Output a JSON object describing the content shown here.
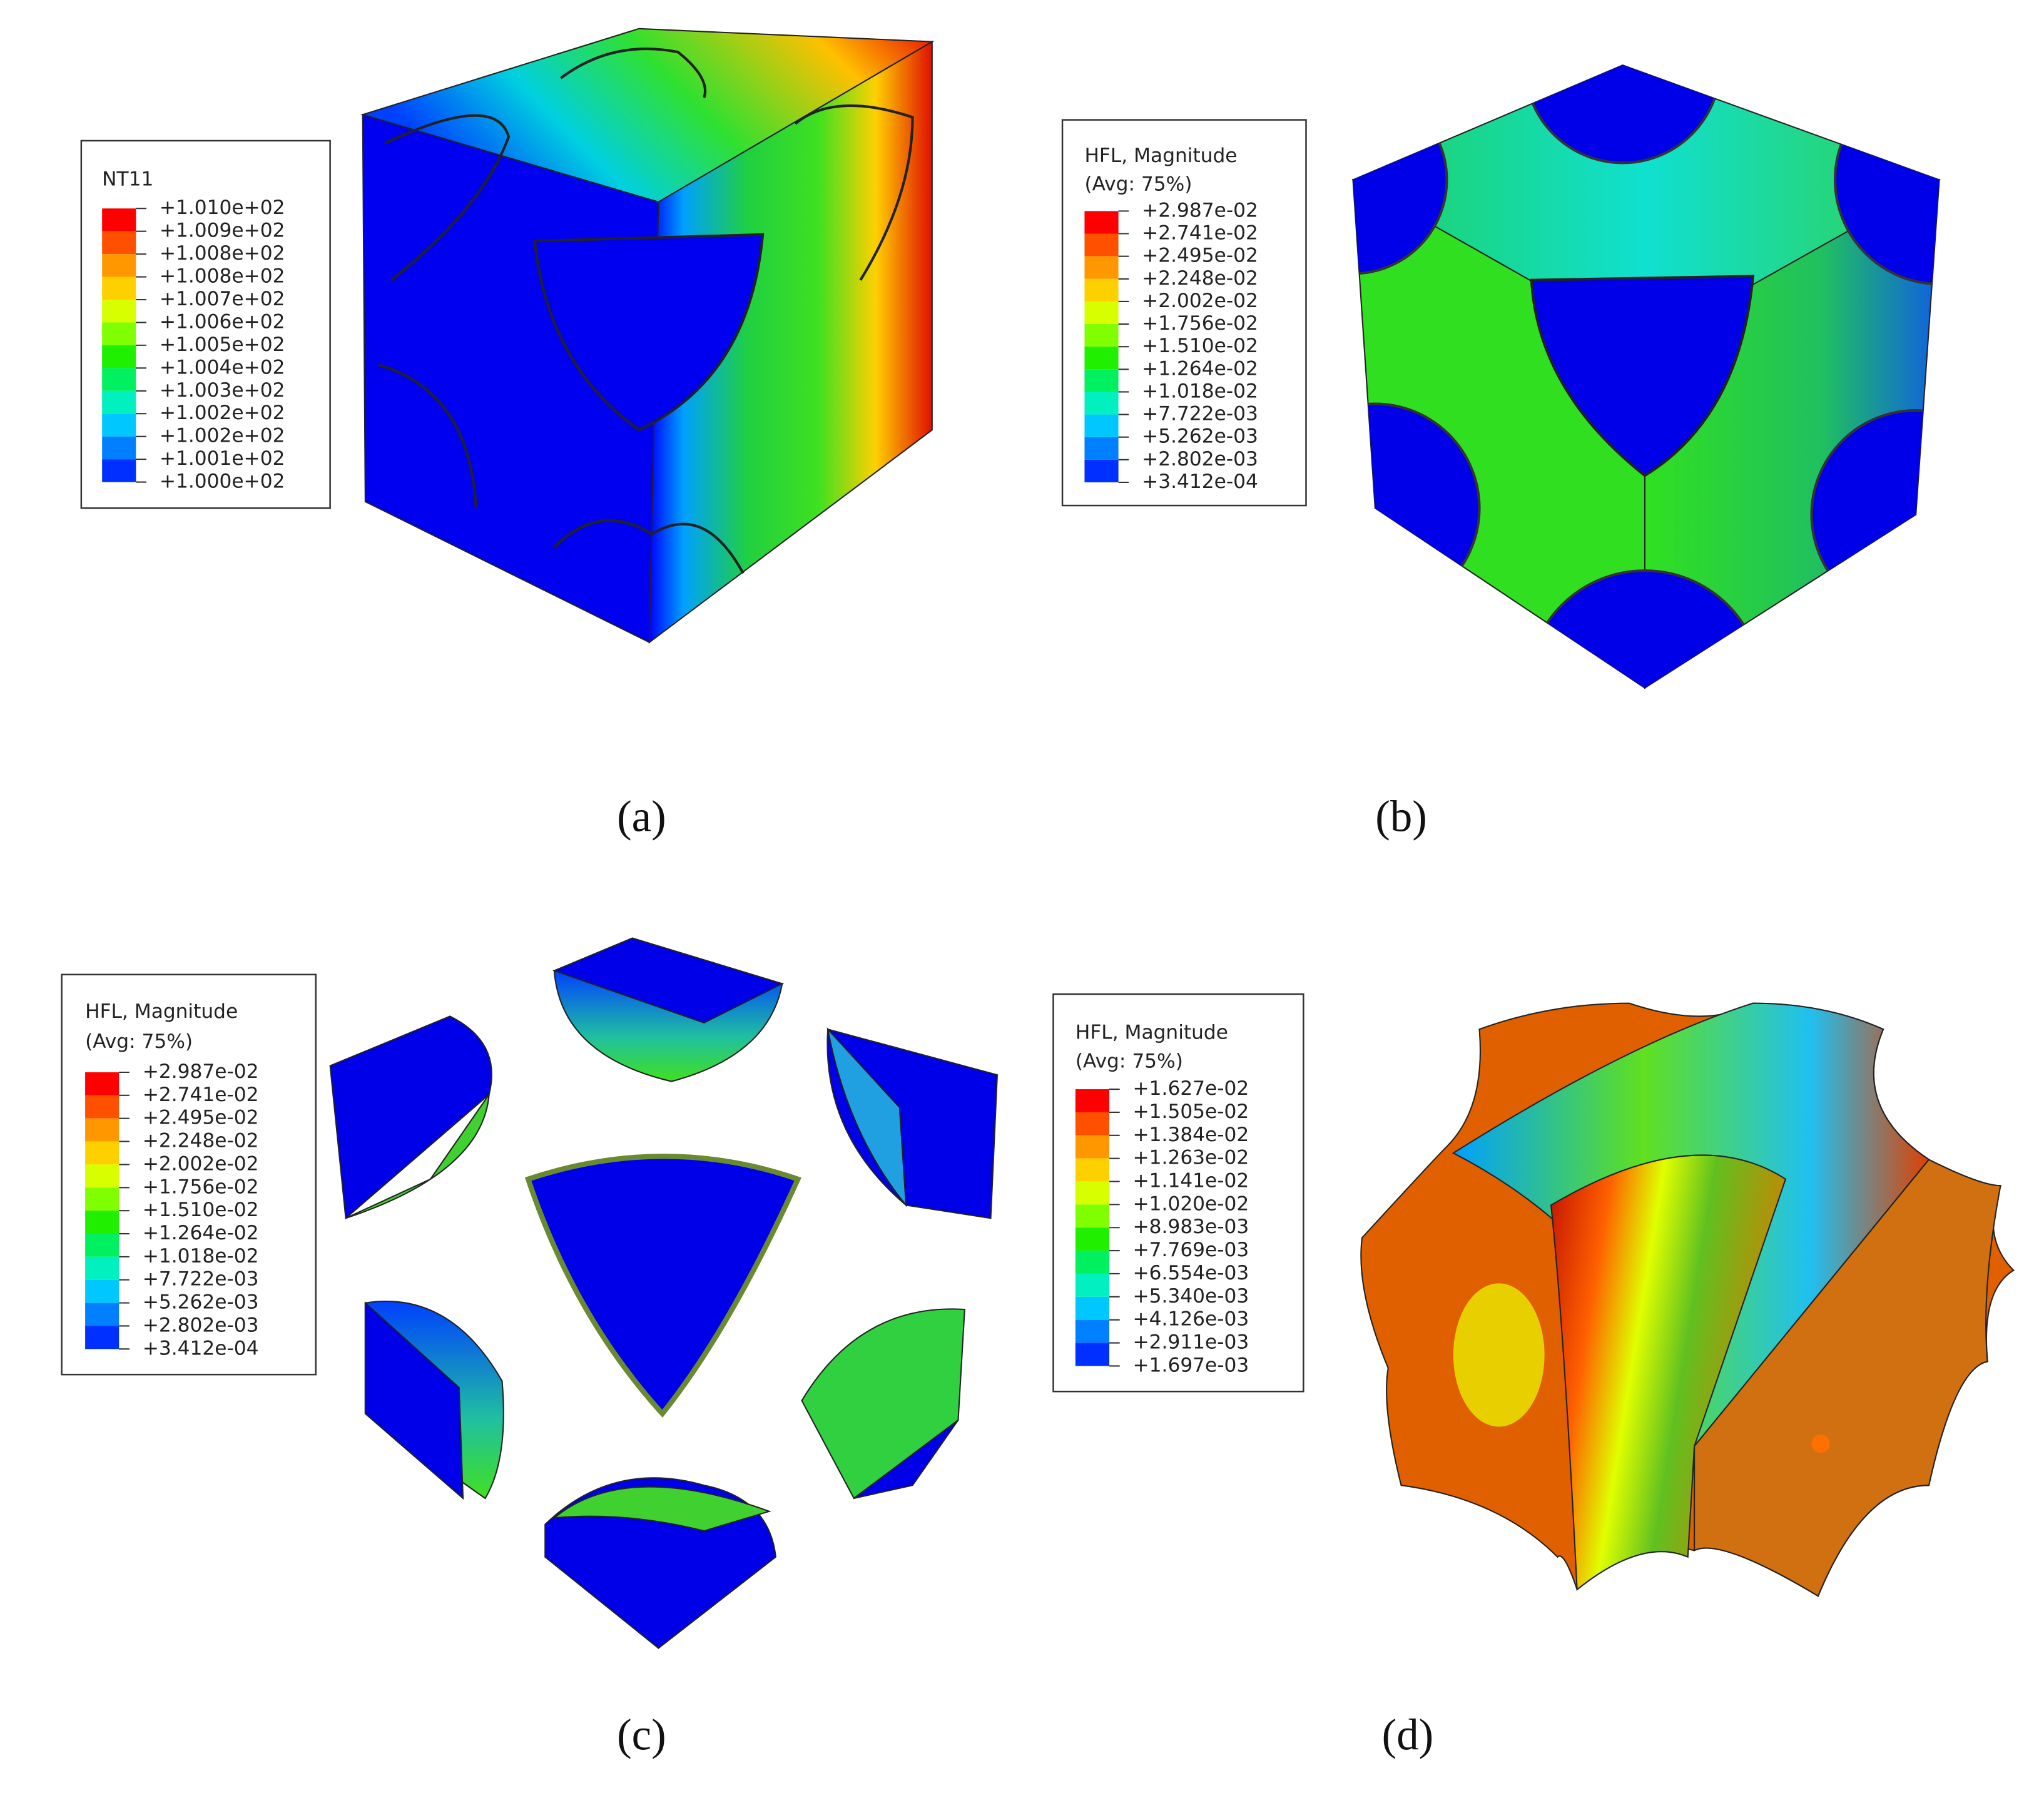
{
  "panels": [
    {
      "caption": "(a)",
      "legend": {
        "title": [
          "NT11"
        ],
        "labels": [
          "+1.010e+02",
          "+1.009e+02",
          "+1.008e+02",
          "+1.008e+02",
          "+1.007e+02",
          "+1.006e+02",
          "+1.005e+02",
          "+1.004e+02",
          "+1.003e+02",
          "+1.002e+02",
          "+1.002e+02",
          "+1.001e+02",
          "+1.000e+02"
        ]
      }
    },
    {
      "caption": "(b)",
      "legend": {
        "title": [
          "HFL, Magnitude",
          "(Avg: 75%)"
        ],
        "labels": [
          "+2.987e-02",
          "+2.741e-02",
          "+2.495e-02",
          "+2.248e-02",
          "+2.002e-02",
          "+1.756e-02",
          "+1.510e-02",
          "+1.264e-02",
          "+1.018e-02",
          "+7.722e-03",
          "+5.262e-03",
          "+2.802e-03",
          "+3.412e-04"
        ]
      }
    },
    {
      "caption": "(c)",
      "legend": {
        "title": [
          "HFL, Magnitude",
          "(Avg: 75%)"
        ],
        "labels": [
          "+2.987e-02",
          "+2.741e-02",
          "+2.495e-02",
          "+2.248e-02",
          "+2.002e-02",
          "+1.756e-02",
          "+1.510e-02",
          "+1.264e-02",
          "+1.018e-02",
          "+7.722e-03",
          "+5.262e-03",
          "+2.802e-03",
          "+3.412e-04"
        ]
      }
    },
    {
      "caption": "(d)",
      "legend": {
        "title": [
          "HFL, Magnitude",
          "(Avg: 75%)"
        ],
        "labels": [
          "+1.627e-02",
          "+1.505e-02",
          "+1.384e-02",
          "+1.263e-02",
          "+1.141e-02",
          "+1.020e-02",
          "+8.983e-03",
          "+7.769e-03",
          "+6.554e-03",
          "+5.340e-03",
          "+4.126e-03",
          "+2.911e-03",
          "+1.697e-03"
        ]
      }
    }
  ]
}
